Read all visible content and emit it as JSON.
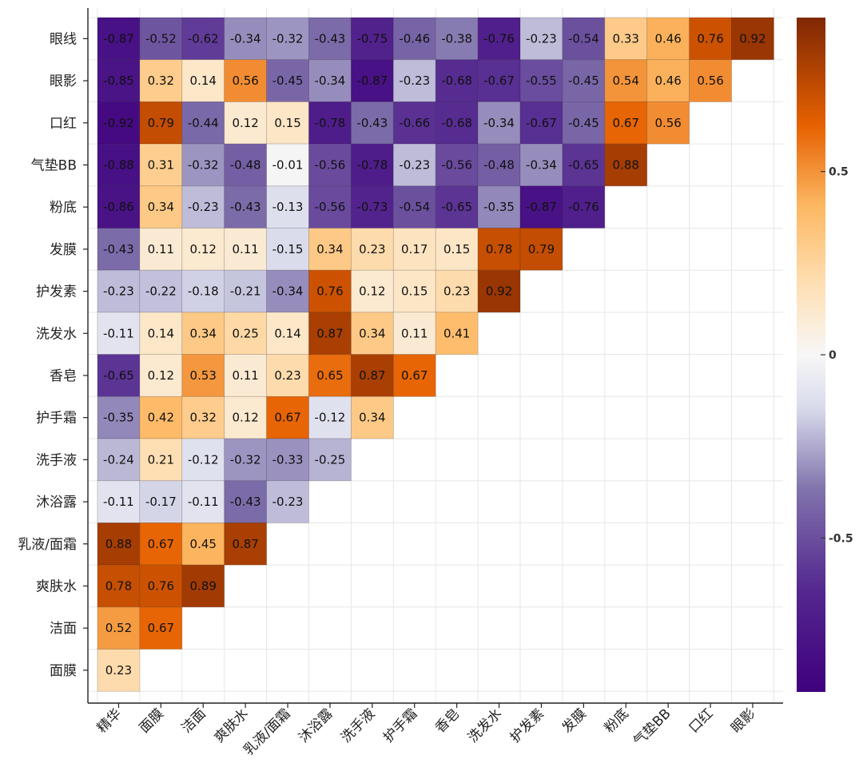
{
  "chart_data": {
    "type": "heatmap",
    "title": "",
    "xlabel": "",
    "ylabel": "",
    "x_categories": [
      "精华",
      "面膜",
      "洁面",
      "爽肤水",
      "乳液/面霜",
      "沐浴露",
      "洗手液",
      "护手霜",
      "香皂",
      "洗发水",
      "护发素",
      "发膜",
      "粉底",
      "气垫BB",
      "口红",
      "眼影"
    ],
    "y_categories": [
      "眼线",
      "眼影",
      "口红",
      "气垫BB",
      "粉底",
      "发膜",
      "护发素",
      "洗发水",
      "香皂",
      "护手霜",
      "洗手液",
      "沐浴露",
      "乳液/面霜",
      "爽肤水",
      "洁面",
      "面膜"
    ],
    "values": [
      [
        -0.87,
        -0.52,
        -0.62,
        -0.34,
        -0.32,
        -0.43,
        -0.75,
        -0.46,
        -0.38,
        -0.76,
        -0.23,
        -0.54,
        0.33,
        0.46,
        0.76,
        0.92
      ],
      [
        -0.85,
        0.32,
        0.14,
        0.56,
        -0.45,
        -0.34,
        -0.87,
        -0.23,
        -0.68,
        -0.67,
        -0.55,
        -0.45,
        0.54,
        0.46,
        0.56
      ],
      [
        -0.92,
        0.79,
        -0.44,
        0.12,
        0.15,
        -0.78,
        -0.43,
        -0.66,
        -0.68,
        -0.34,
        -0.67,
        -0.45,
        0.67,
        0.56
      ],
      [
        -0.88,
        0.31,
        -0.32,
        -0.48,
        -0.01,
        -0.56,
        -0.78,
        -0.23,
        -0.56,
        -0.48,
        -0.34,
        -0.65,
        0.88
      ],
      [
        -0.86,
        0.34,
        -0.23,
        -0.43,
        -0.13,
        -0.56,
        -0.73,
        -0.54,
        -0.65,
        -0.35,
        -0.87,
        -0.76
      ],
      [
        -0.43,
        0.11,
        0.12,
        0.11,
        -0.15,
        0.34,
        0.23,
        0.17,
        0.15,
        0.78,
        0.79
      ],
      [
        -0.23,
        -0.22,
        -0.18,
        -0.21,
        -0.34,
        0.76,
        0.12,
        0.15,
        0.23,
        0.92
      ],
      [
        -0.11,
        0.14,
        0.34,
        0.25,
        0.14,
        0.87,
        0.34,
        0.11,
        0.41
      ],
      [
        -0.65,
        0.12,
        0.53,
        0.11,
        0.23,
        0.65,
        0.87,
        0.67
      ],
      [
        -0.35,
        0.42,
        0.32,
        0.12,
        0.67,
        -0.12,
        0.34
      ],
      [
        -0.24,
        0.21,
        -0.12,
        -0.32,
        -0.33,
        -0.25
      ],
      [
        -0.11,
        -0.17,
        -0.11,
        -0.43,
        -0.23
      ],
      [
        0.88,
        0.67,
        0.45,
        0.87
      ],
      [
        0.78,
        0.76,
        0.89
      ],
      [
        0.52,
        0.67
      ],
      [
        0.23
      ]
    ],
    "value_range": [
      -0.92,
      0.92
    ],
    "colormap": {
      "low": "#4a1486",
      "mid": "#f7f7f7",
      "high": "#8c2d04"
    },
    "colorbar": {
      "ticks": [
        0.5,
        0,
        -0.5
      ],
      "tick_labels": [
        "0.5",
        "0",
        "-0.5"
      ],
      "placement": "right"
    },
    "grid": true
  }
}
